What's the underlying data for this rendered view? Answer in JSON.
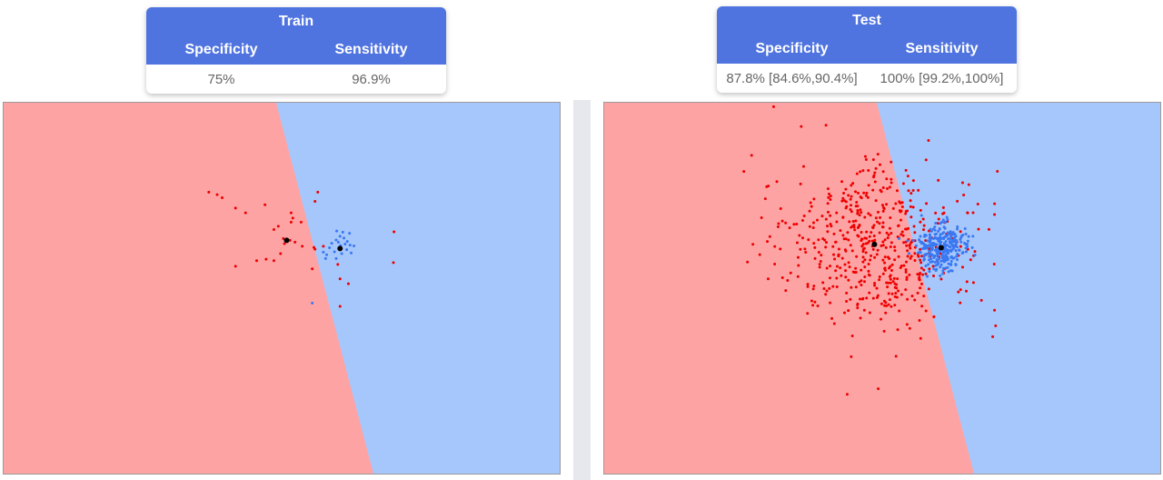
{
  "panels": [
    {
      "title": "Train",
      "specificity_label": "Specificity",
      "sensitivity_label": "Sensitivity",
      "specificity": "75%",
      "sensitivity": "96.9%"
    },
    {
      "title": "Test",
      "specificity_label": "Specificity",
      "sensitivity_label": "Sensitivity",
      "specificity": "87.8% [84.6%,90.4%]",
      "sensitivity": "100% [99.2%,100%]"
    }
  ],
  "colors": {
    "header": "#4f73df",
    "region_red": "#fea3a4",
    "region_blue": "#a6c7fb",
    "class_red": "#ee0000",
    "class_blue": "#3a78f2",
    "centroid": "#000000"
  },
  "chart_data": [
    {
      "type": "scatter",
      "title": "Train",
      "xlim": [
        0,
        100
      ],
      "ylim": [
        0,
        100
      ],
      "decision_boundary": [
        [
          49,
          100
        ],
        [
          66.5,
          0
        ]
      ],
      "centroids": [
        [
          50.9,
          62.9
        ],
        [
          60.5,
          60.7
        ]
      ],
      "series": [
        {
          "class": "red",
          "points": [
            [
              36.9,
              75.9
            ],
            [
              38.4,
              75.2
            ],
            [
              39.3,
              74.4
            ],
            [
              41.7,
              71.6
            ],
            [
              43.5,
              70.3
            ],
            [
              47.0,
              72.5
            ],
            [
              51.7,
              70.3
            ],
            [
              52.0,
              68.9
            ],
            [
              51.7,
              67.8
            ],
            [
              53.5,
              67.8
            ],
            [
              49.4,
              66.7
            ],
            [
              48.6,
              65.8
            ],
            [
              50.3,
              63.4
            ],
            [
              51.5,
              62.9
            ],
            [
              50.5,
              62.0
            ],
            [
              52.4,
              62.4
            ],
            [
              53.7,
              61.3
            ],
            [
              55.8,
              61.0
            ],
            [
              56.0,
              60.5
            ],
            [
              49.8,
              59.3
            ],
            [
              48.6,
              57.4
            ],
            [
              47.2,
              57.8
            ],
            [
              45.5,
              57.4
            ],
            [
              41.7,
              55.9
            ],
            [
              55.5,
              55.2
            ],
            [
              57.5,
              61.3
            ],
            [
              56.5,
              75.9
            ],
            [
              60.1,
              56.4
            ],
            [
              60.5,
              52.5
            ],
            [
              62.0,
              51.2
            ],
            [
              60.5,
              45.1
            ],
            [
              70.2,
              65.2
            ],
            [
              70.1,
              56.9
            ],
            [
              56.0,
              73.4
            ]
          ]
        },
        {
          "class": "blue",
          "points": [
            [
              59.0,
              62.1
            ],
            [
              59.8,
              63.0
            ],
            [
              60.5,
              64.0
            ],
            [
              61.2,
              63.5
            ],
            [
              61.8,
              62.6
            ],
            [
              62.3,
              61.6
            ],
            [
              61.7,
              60.4
            ],
            [
              60.8,
              59.3
            ],
            [
              59.5,
              59.8
            ],
            [
              58.6,
              60.9
            ],
            [
              58.1,
              59.0
            ],
            [
              57.9,
              58.0
            ],
            [
              59.8,
              58.0
            ],
            [
              62.5,
              59.5
            ],
            [
              63.0,
              61.4
            ],
            [
              60.2,
              62.4
            ],
            [
              61.0,
              65.1
            ],
            [
              62.2,
              64.8
            ],
            [
              59.9,
              65.4
            ],
            [
              60.6,
              61.5
            ],
            [
              61.4,
              61.9
            ],
            [
              57.5,
              59.7
            ],
            [
              55.5,
              46.0
            ]
          ]
        }
      ]
    },
    {
      "type": "scatter",
      "title": "Test",
      "xlim": [
        0,
        100
      ],
      "ylim": [
        0,
        100
      ],
      "decision_boundary": [
        [
          49,
          100
        ],
        [
          66.5,
          0
        ]
      ],
      "centroids": [
        [
          48.6,
          61.8
        ],
        [
          60.6,
          60.9
        ]
      ],
      "series": [
        {
          "class": "red",
          "description": "about 550 red points, Gaussian-like cloud centred near the red centroid, a few extending into the blue region",
          "count": 550,
          "center": [
            48.6,
            61.8
          ],
          "spread": [
            8.5,
            10.5
          ]
        },
        {
          "class": "blue",
          "description": "about 300 blue points tightly packed around the blue centroid",
          "count": 300,
          "center": [
            60.6,
            60.9
          ],
          "spread": [
            2.3,
            3.1
          ]
        }
      ]
    }
  ]
}
